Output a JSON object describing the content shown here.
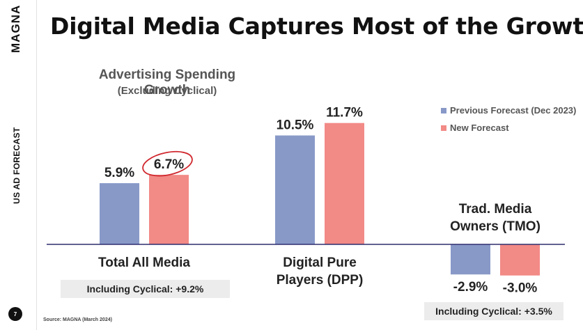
{
  "brand": "MAGNA",
  "side_label": "US AD FORECAST",
  "page_number": "7",
  "title": "Digital Media Captures Most of the Growth",
  "source": "Source: MAGNA (March 2024)",
  "notes": {
    "total": "Including Cyclical: +9.2%",
    "tmo": "Including Cyclical: +3.5%"
  },
  "colors": {
    "previous": "#8899c8",
    "new": "#f28a86",
    "axis": "#2d2d6e",
    "highlight": "#d0282e"
  },
  "chart_data": {
    "type": "bar",
    "title": "Advertising Spending Growth",
    "subtitle": "(Excluding Cyclical)",
    "categories": [
      "Total All Media",
      "Digital Pure Players (DPP)",
      "Trad. Media Owners (TMO)"
    ],
    "category_labels": [
      [
        "Total All Media"
      ],
      [
        "Digital Pure",
        "Players (DPP)"
      ],
      [
        "Trad. Media",
        "Owners (TMO)"
      ]
    ],
    "series": [
      {
        "name": "Previous Forecast (Dec 2023)",
        "values": [
          5.9,
          10.5,
          -2.9
        ],
        "labels": [
          "5.9%",
          "10.5%",
          "-2.9%"
        ]
      },
      {
        "name": "New Forecast",
        "values": [
          6.7,
          11.7,
          -3.0
        ],
        "labels": [
          "6.7%",
          "11.7%",
          "-3.0%"
        ]
      }
    ],
    "highlighted": {
      "series": 1,
      "index": 0
    },
    "ylim": [
      -3.5,
      14
    ],
    "legend_position": "top-right",
    "grid": false
  }
}
